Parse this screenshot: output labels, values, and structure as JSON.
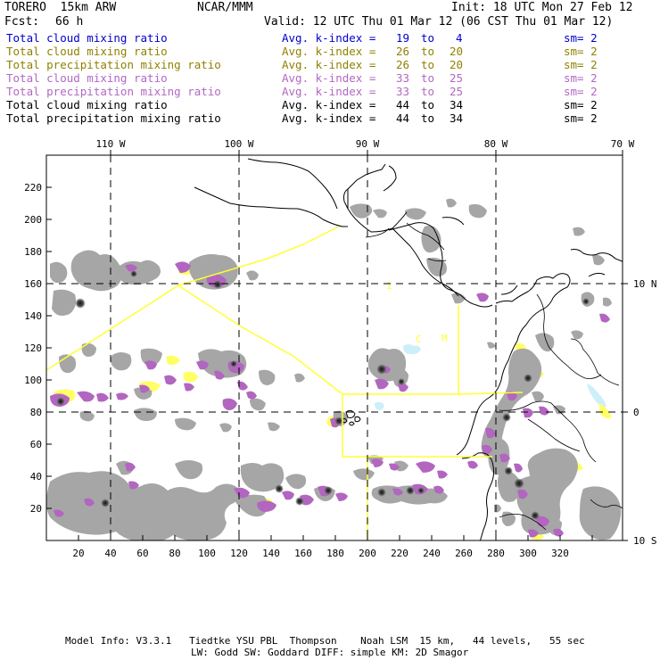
{
  "header": {
    "model": "TORERO  15km ARW",
    "center": "NCAR/MMM",
    "init": "Init: 18 UTC Mon 27 Feb 12",
    "fcst_label": "Fcst:",
    "fcst_value": "66 h",
    "valid": "Valid: 12 UTC Thu 01 Mar 12 (06 CST Thu 01 Mar 12)"
  },
  "legend": [
    {
      "field": "Total cloud mixing ratio",
      "index_label": "Avg. k-index =",
      "k_from": "19",
      "to": "to",
      "k_to": "4",
      "sm": "sm= 2",
      "color": "#0000cc"
    },
    {
      "field": "Total cloud mixing ratio",
      "index_label": "Avg. k-index =",
      "k_from": "26",
      "to": "to",
      "k_to": "20",
      "sm": "sm= 2",
      "color": "#8f8200"
    },
    {
      "field": "Total precipitation mixing ratio",
      "index_label": "Avg. k-index =",
      "k_from": "26",
      "to": "to",
      "k_to": "20",
      "sm": "sm= 2",
      "color": "#8f8200"
    },
    {
      "field": "Total cloud mixing ratio",
      "index_label": "Avg. k-index =",
      "k_from": "33",
      "to": "to",
      "k_to": "25",
      "sm": "sm= 2",
      "color": "#b268c2"
    },
    {
      "field": "Total precipitation mixing ratio",
      "index_label": "Avg. k-index =",
      "k_from": "33",
      "to": "to",
      "k_to": "25",
      "sm": "sm= 2",
      "color": "#b268c2"
    },
    {
      "field": "Total cloud mixing ratio",
      "index_label": "Avg. k-index =",
      "k_from": "44",
      "to": "to",
      "k_to": "34",
      "sm": "sm= 2",
      "color": "#000000"
    },
    {
      "field": "Total precipitation mixing ratio",
      "index_label": "Avg. k-index =",
      "k_from": "44",
      "to": "to",
      "k_to": "34",
      "sm": "sm= 2",
      "color": "#000000"
    }
  ],
  "map": {
    "x_ticks": [
      "20",
      "40",
      "60",
      "80",
      "100",
      "120",
      "140",
      "160",
      "180",
      "200",
      "220",
      "240",
      "260",
      "280",
      "300",
      "320"
    ],
    "y_ticks": [
      "20",
      "40",
      "60",
      "80",
      "100",
      "120",
      "140",
      "160",
      "180",
      "200",
      "220"
    ],
    "lon_labels": [
      "110 W",
      "100 W",
      "90 W",
      "80 W",
      "70 W"
    ],
    "lat_labels": [
      "10 N",
      "0",
      "10 S"
    ],
    "subdomain_markers": [
      "1",
      "C",
      "M"
    ],
    "colors": {
      "cloud_grey": "#a6a6a6",
      "cloud_dark": "#222222",
      "precip_purple": "#b266c0",
      "light_yellow": "#ffff66",
      "light_blue": "#cdeff9",
      "domain_lines": "#ffff33"
    }
  },
  "footer": {
    "line1": "Model Info: V3.3.1   Tiedtke YSU PBL  Thompson    Noah LSM  15 km,   44 levels,   55 sec",
    "line2": "LW: Godd SW: Goddard DIFF: simple KM: 2D Smagor"
  }
}
